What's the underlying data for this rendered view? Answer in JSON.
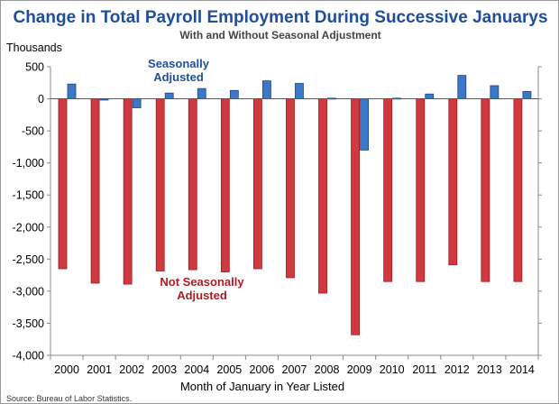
{
  "chart_data": {
    "type": "bar",
    "title": "Change in Total Payroll Employment During Successive Januarys",
    "subtitle": "With and Without Seasonal Adjustment",
    "ylabel": "Thousands",
    "xlabel": "Month of January in Year Listed",
    "source": "Source: Bureau of Labor Statistics.",
    "ylim": [
      -4000,
      500
    ],
    "yticks": [
      500,
      0,
      -500,
      -1000,
      -1500,
      -2000,
      -2500,
      -3000,
      -3500,
      -4000
    ],
    "ytick_labels": [
      "500",
      "0",
      "-500",
      "-1,000",
      "-1,500",
      "-2,000",
      "-2,500",
      "-3,000",
      "-3,500",
      "-4,000"
    ],
    "grid": false,
    "categories": [
      "2000",
      "2001",
      "2002",
      "2003",
      "2004",
      "2005",
      "2006",
      "2007",
      "2008",
      "2009",
      "2010",
      "2011",
      "2012",
      "2013",
      "2014"
    ],
    "series": [
      {
        "name": "Not Seasonally Adjusted",
        "color": "#d0393f",
        "values": [
          -2650,
          -2875,
          -2890,
          -2685,
          -2665,
          -2700,
          -2650,
          -2790,
          -3030,
          -3680,
          -2850,
          -2850,
          -2590,
          -2850,
          -2850
        ]
      },
      {
        "name": "Seasonally Adjusted",
        "color": "#3d78c6",
        "values": [
          230,
          -20,
          -140,
          90,
          160,
          130,
          280,
          240,
          10,
          -800,
          10,
          75,
          365,
          205,
          115
        ]
      }
    ]
  },
  "colors": {
    "title": "#1f4e9c",
    "subtitle": "#444444",
    "sa_label": "#1f4e9c",
    "nsa_label": "#b01c22"
  }
}
